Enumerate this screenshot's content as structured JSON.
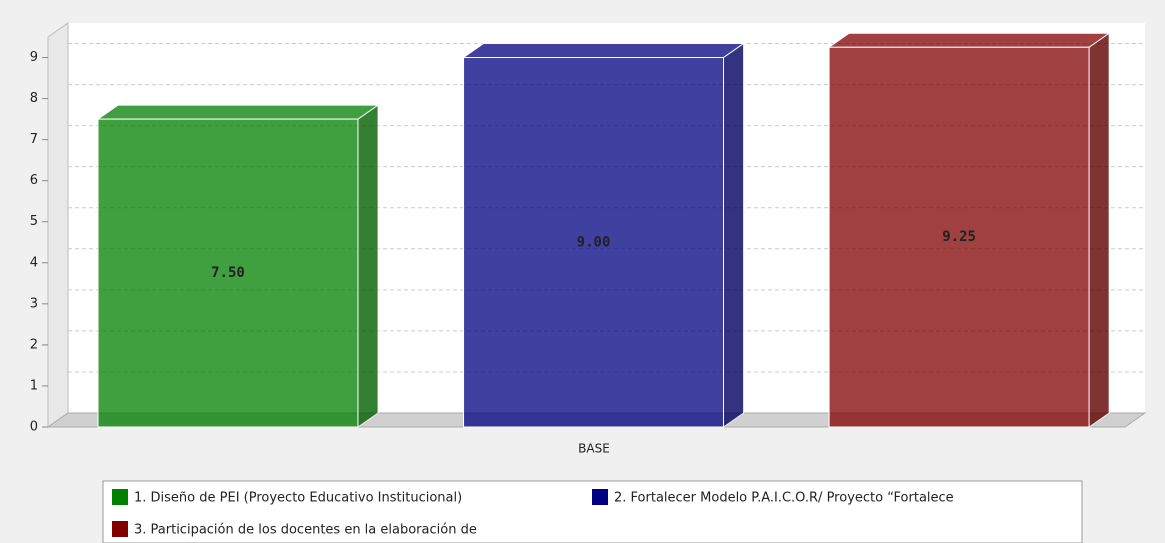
{
  "chart_data": {
    "type": "bar3d",
    "categories": [
      "BASE"
    ],
    "series": [
      {
        "name": "1. Diseño de PEI (Proyecto Educativo Institucional)",
        "color": "#008000",
        "values": [
          7.5
        ],
        "value_labels": [
          "7.50"
        ]
      },
      {
        "name": "2. Fortalecer Modelo P.A.I.C.O.R/ Proyecto “Fortalece",
        "color": "#000080",
        "values": [
          9.0
        ],
        "value_labels": [
          "9.00"
        ]
      },
      {
        "name": "3. Participación de los docentes en la elaboración de",
        "color": "#800000",
        "values": [
          9.25
        ],
        "value_labels": [
          "9.25"
        ]
      }
    ],
    "ylim": [
      0,
      9.5
    ],
    "yticks": [
      0,
      1,
      2,
      3,
      4,
      5,
      6,
      7,
      8,
      9
    ],
    "grid": true
  }
}
